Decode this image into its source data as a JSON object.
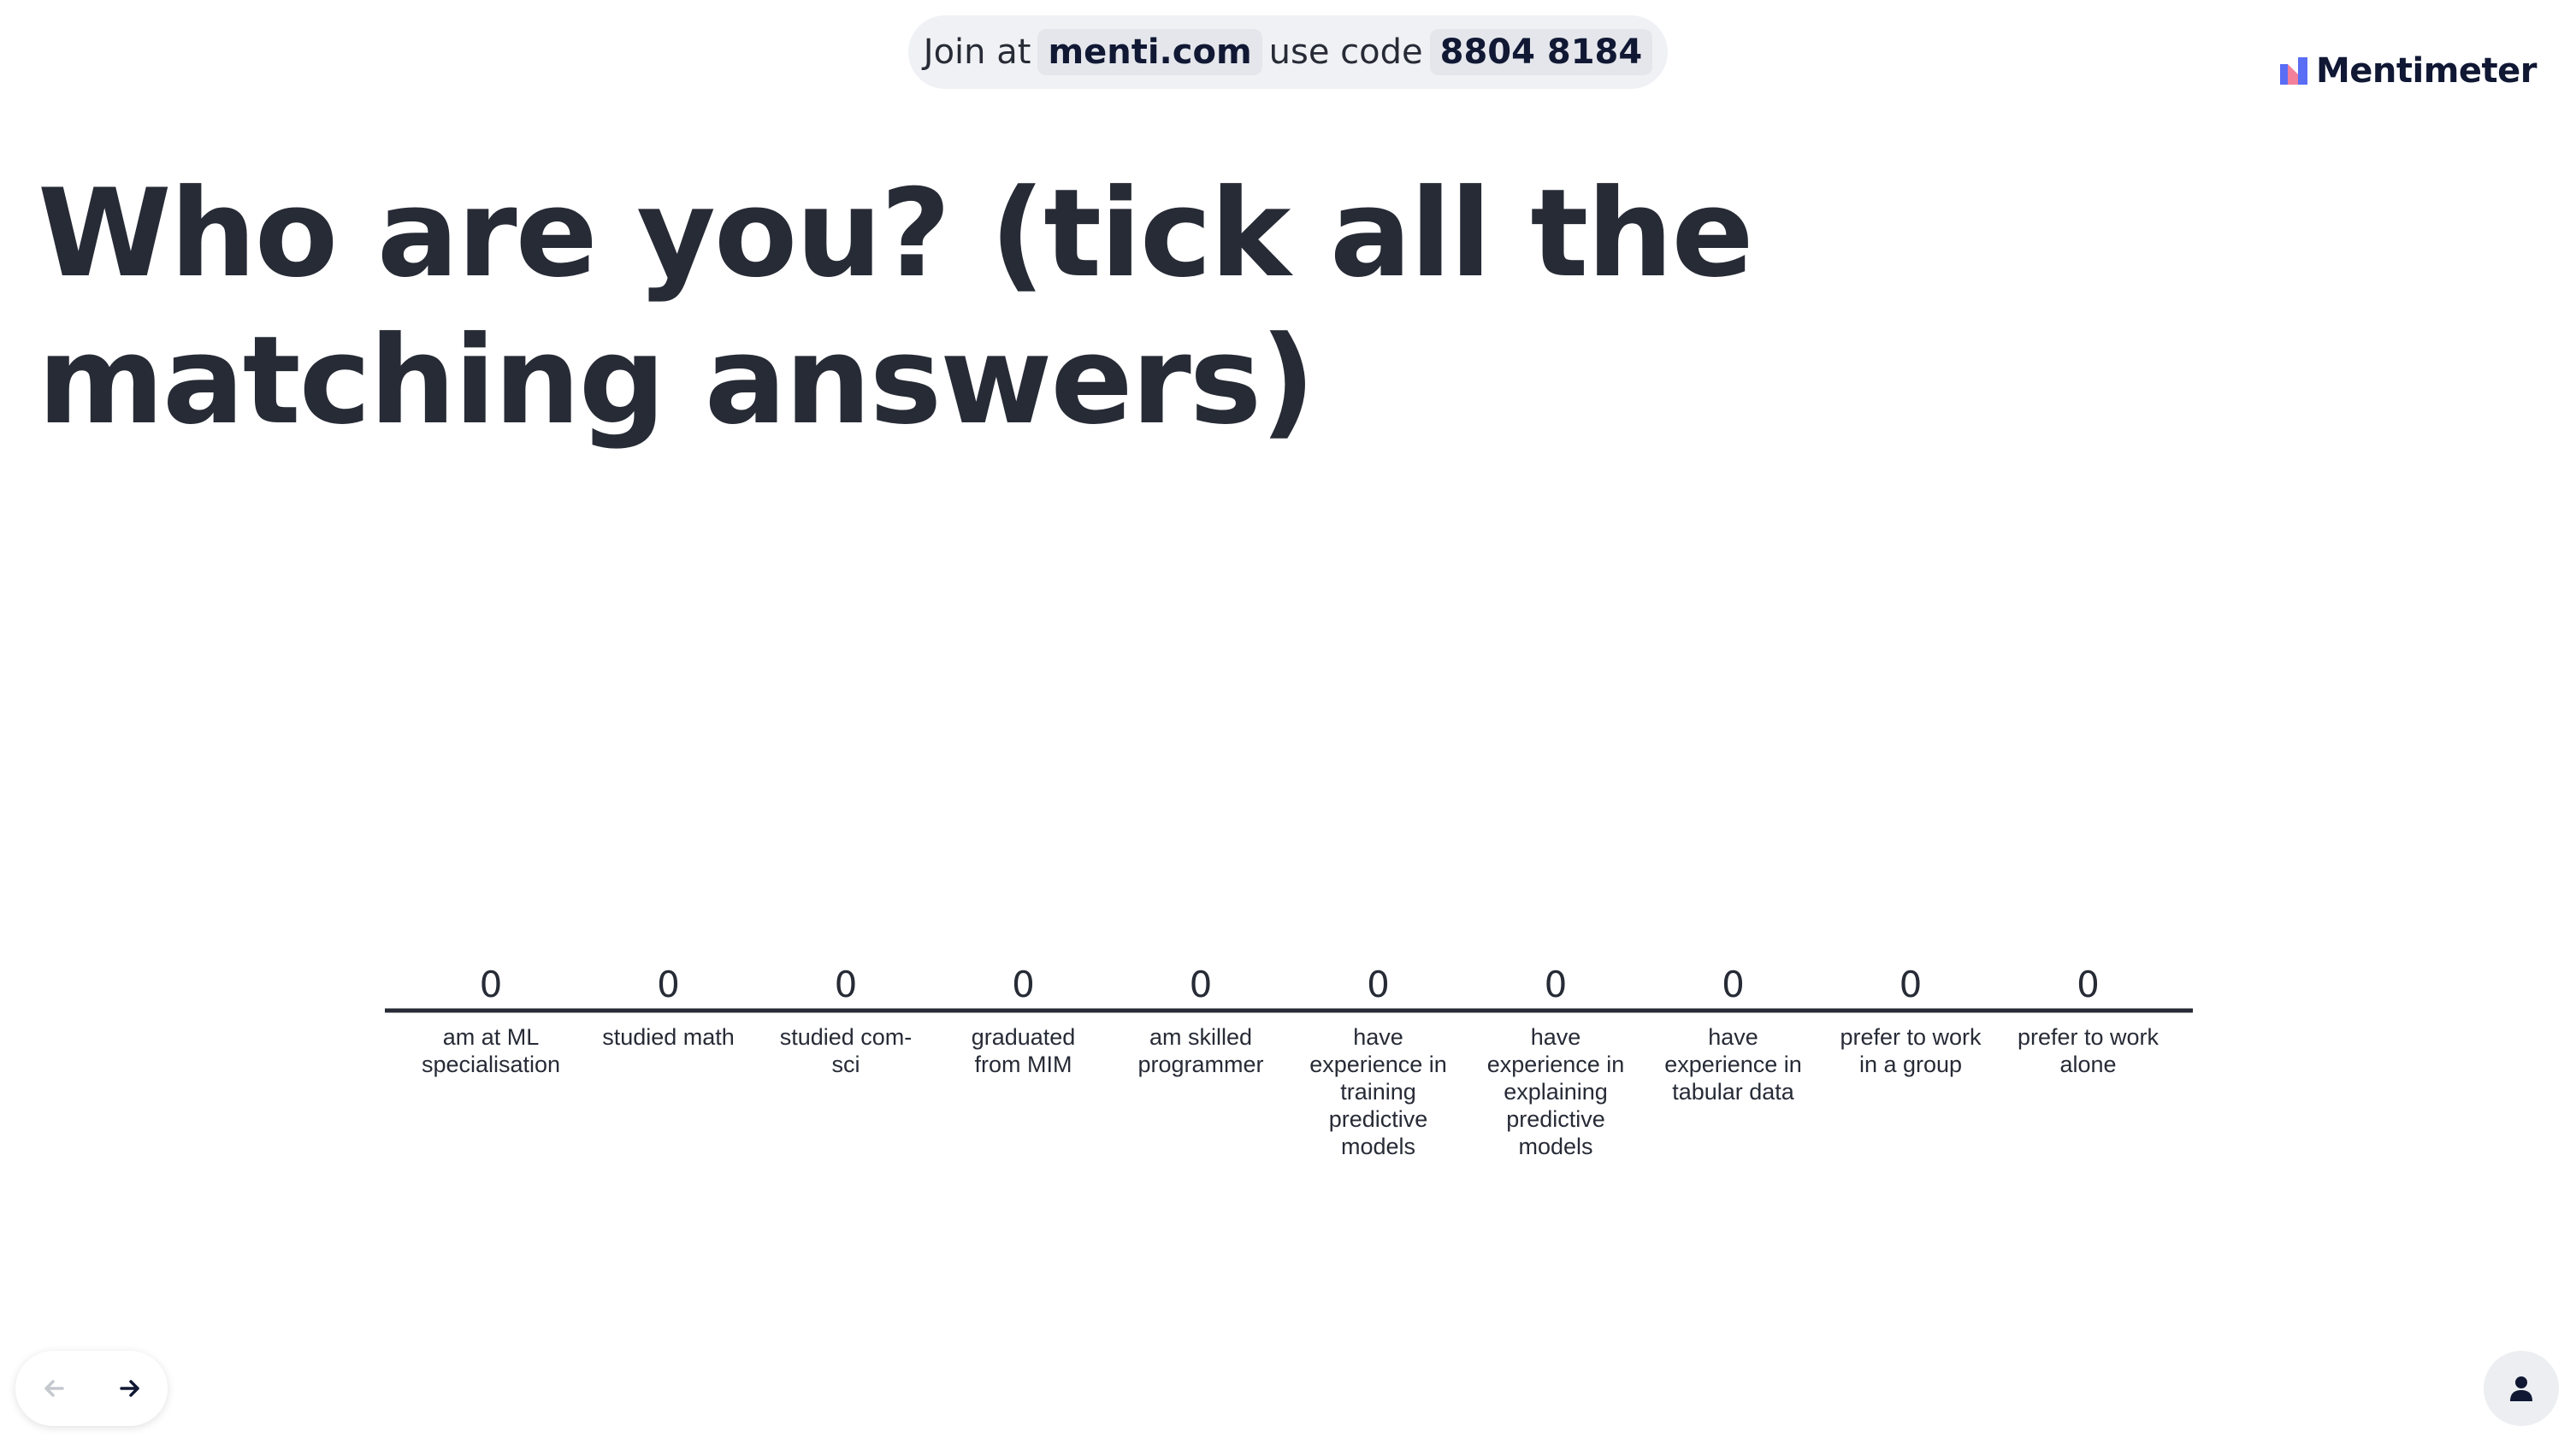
{
  "header": {
    "join_prefix": "Join at",
    "join_url": "menti.com",
    "code_prefix": "use code",
    "code": "8804 8184"
  },
  "logo": {
    "text": "Mentimeter",
    "icon": "mentimeter-logo-icon"
  },
  "title": "Who are you? (tick all the matching answers)",
  "chart_data": {
    "type": "bar",
    "categories": [
      [
        "am at ML",
        "specialisation"
      ],
      [
        "studied math"
      ],
      [
        "studied com-",
        "sci"
      ],
      [
        "graduated",
        "from MIM"
      ],
      [
        "am skilled",
        "programmer"
      ],
      [
        "have",
        "experience in",
        "training",
        "predictive",
        "models"
      ],
      [
        "have",
        "experience in",
        "explaining",
        "predictive",
        "models"
      ],
      [
        "have",
        "experience in",
        "tabular data"
      ],
      [
        "prefer to work",
        "in a group"
      ],
      [
        "prefer to work",
        "alone"
      ]
    ],
    "values": [
      0,
      0,
      0,
      0,
      0,
      0,
      0,
      0,
      0,
      0
    ],
    "title": "",
    "xlabel": "",
    "ylabel": "",
    "grid": false,
    "legend": "none"
  },
  "nav": {
    "prev_icon": "arrow-left-icon",
    "next_icon": "arrow-right-icon"
  },
  "audience": {
    "icon": "person-icon"
  },
  "colors": {
    "text": "#272b36",
    "pill_bg": "#f0f1f4",
    "axis": "#272b36",
    "disabled": "#c5c8cf"
  }
}
